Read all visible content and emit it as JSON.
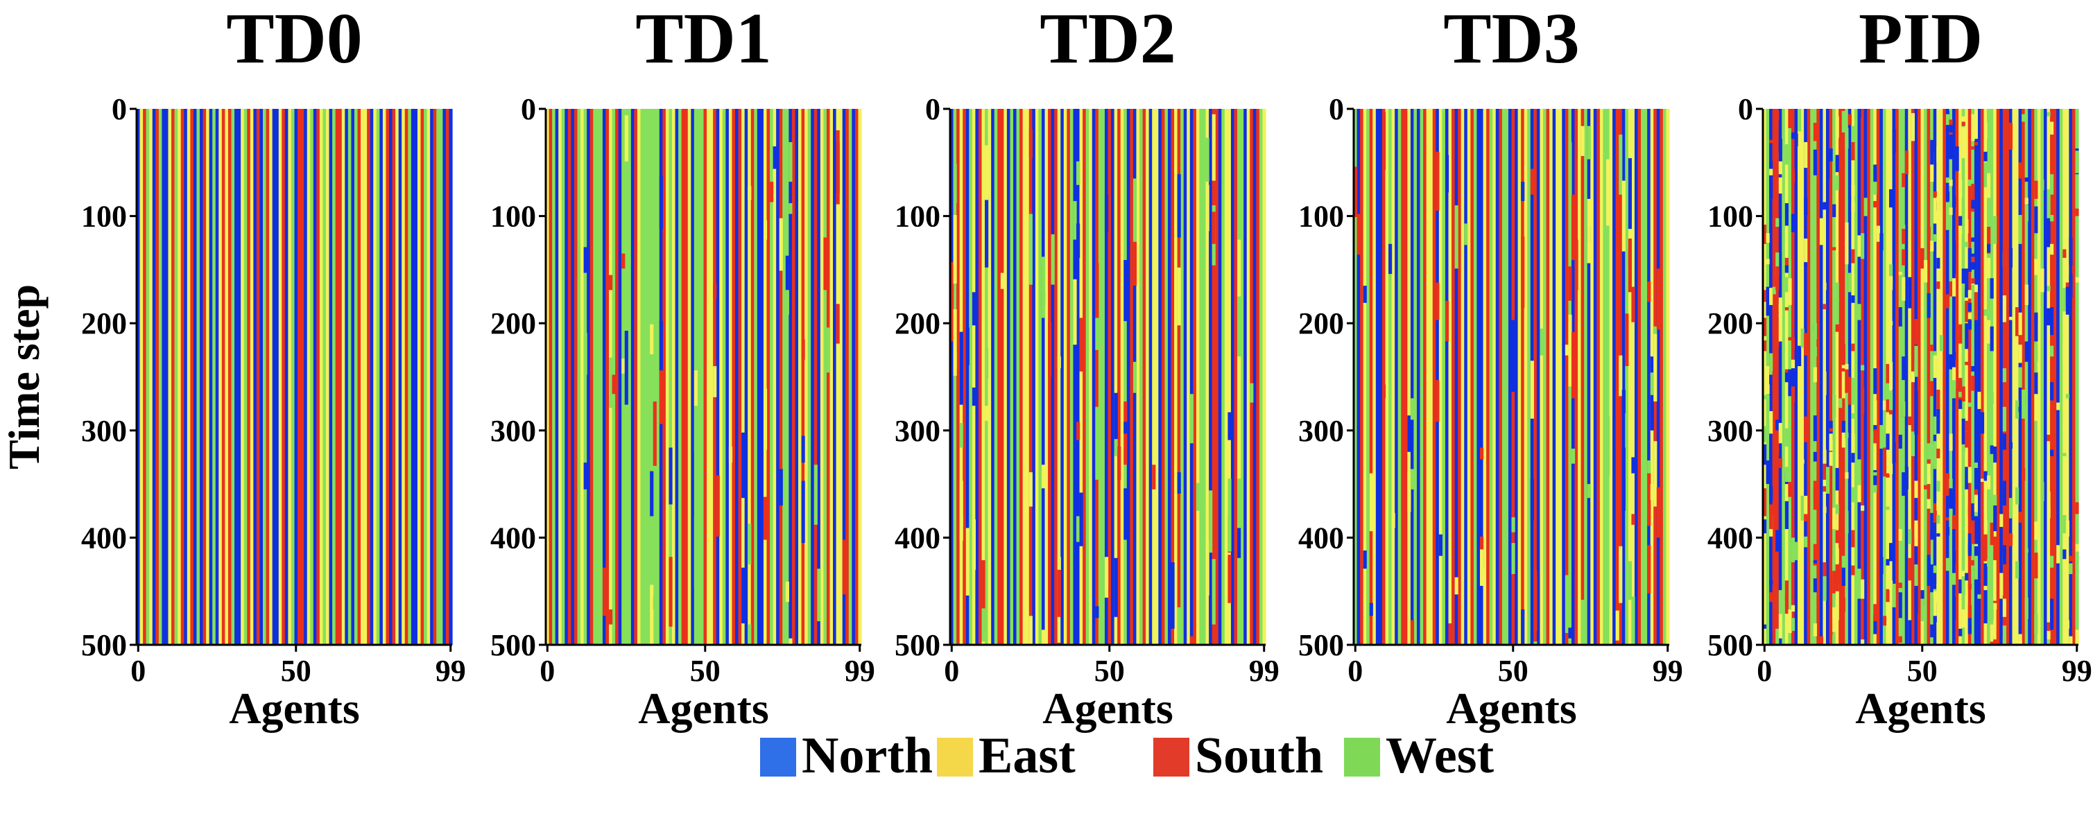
{
  "chart_data": {
    "type": "heatmap",
    "ylabel": "Time step",
    "xlabel": "Agents",
    "x_range": [
      0,
      99
    ],
    "y_range": [
      0,
      500
    ],
    "x_ticks": [
      "0",
      "50",
      "99"
    ],
    "y_ticks": [
      "0",
      "100",
      "200",
      "300",
      "400",
      "500"
    ],
    "categories": [
      {
        "name": "North",
        "color": "#2f6fe8"
      },
      {
        "name": "East",
        "color": "#f5d84a"
      },
      {
        "name": "South",
        "color": "#e23b2a"
      },
      {
        "name": "West",
        "color": "#7fd957"
      }
    ],
    "heat_colors": {
      "North": "#1030e0",
      "East": "#f2f25a",
      "South": "#e8321c",
      "West": "#86e05a"
    },
    "legend_position": "bottom-center",
    "panels": [
      {
        "title": "TD0",
        "mix": "stable",
        "seed": 11,
        "pattern": "NESW ENSW NNES WESN ESNW NSEN WNES ESWN NEWS ENSN WSEN NESN EWNS SNEW NSEW ENWS SENW NWSE ESNE WNES NSEN ESWN NESW ENSW WNSN"
      },
      {
        "title": "TD1",
        "mix": "few",
        "seed": 23,
        "pattern": "ESWN EWNS NSWE WNSW WWNS EWSN WWWN SEWW WWWW NSEW ENWS SENW WWSE ESNE WNES NSEN ESWN NESW ENSW WNSN ESEW NSNE WSEN EENS WNSE"
      },
      {
        "title": "TD2",
        "mix": "some",
        "seed": 37,
        "pattern": "NWSE SNWE NSEW ENWS SENW NWSE ESNE WNES NSEN ESWN NESW ENSW WNSN ESEW NSNE WSEN EENS WNSE SWNE NSEW WENS SNWE ENSW WNES NSWE"
      },
      {
        "title": "TD3",
        "mix": "some",
        "seed": 53,
        "pattern": "WNSE WSEN NSEW ENWS SENW NWSE ESNE WNES NSEN ESWN NESW ENSW WNSN ESEW NSNE WSEN EENS WNSE SWNE NSEW WENS SNWE ENSW WNES NSWE"
      },
      {
        "title": "PID",
        "mix": "many",
        "seed": 71,
        "pattern": "EWNS SNWE WSNE ENSW WSNE NSWE SSWN EWNS NSWE SNWE ENSW WNES NSEW SWNE ESNW NSEW ESWN NSEW WESN SSNE ENSW NSWE WNES SNWE ENSW"
      }
    ]
  },
  "legend": {
    "labels": [
      "North",
      "East",
      "South",
      "West"
    ]
  }
}
